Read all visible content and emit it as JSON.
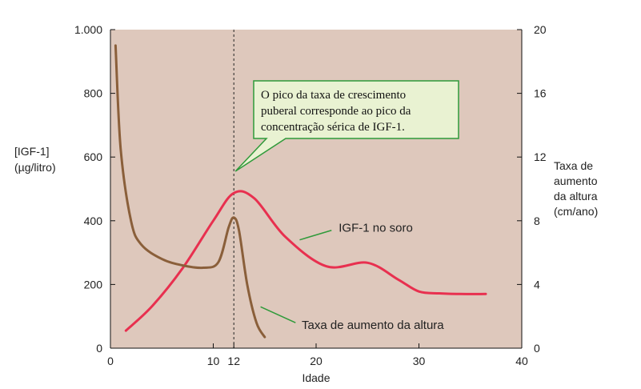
{
  "chart_data": {
    "type": "line",
    "xlabel": "Idade",
    "x_ticks": [
      "0",
      "10",
      "12",
      "20",
      "30",
      "40"
    ],
    "x_tick_values": [
      0,
      10,
      12,
      20,
      30,
      40
    ],
    "xlim": [
      0,
      40
    ],
    "y_left": {
      "label_lines": [
        "[IGF-1]",
        "(µg/litro)"
      ],
      "ticks": [
        "0",
        "200",
        "400",
        "600",
        "800",
        "1.000"
      ],
      "tick_values": [
        0,
        200,
        400,
        600,
        800,
        1000
      ],
      "lim": [
        0,
        1000
      ]
    },
    "y_right": {
      "label_lines": [
        "Taxa de",
        "aumento",
        "da altura",
        "(cm/ano)"
      ],
      "ticks": [
        "0",
        "4",
        "8",
        "12",
        "16",
        "20"
      ],
      "tick_values": [
        0,
        4,
        8,
        12,
        16,
        20
      ],
      "lim": [
        0,
        20
      ]
    },
    "series": [
      {
        "name": "IGF-1 no soro",
        "axis": "left",
        "color": "#e8304f",
        "x": [
          1.5,
          4,
          7,
          10,
          12,
          14,
          17,
          21,
          25,
          28,
          30,
          32,
          34,
          36.5
        ],
        "y": [
          55,
          130,
          250,
          400,
          487,
          470,
          350,
          257,
          268,
          215,
          178,
          172,
          170,
          170
        ]
      },
      {
        "name": "Taxa de aumento da altura",
        "axis": "right",
        "color": "#8a5f3a",
        "x": [
          0.5,
          1.0,
          2.0,
          3.0,
          5.0,
          7.0,
          9.0,
          10.5,
          11.5,
          12.0,
          12.5,
          13.3,
          14.2,
          15.0
        ],
        "y": [
          19.0,
          12.5,
          8.0,
          6.5,
          5.6,
          5.2,
          5.05,
          5.4,
          7.6,
          8.2,
          7.4,
          4.0,
          1.6,
          0.7
        ]
      }
    ],
    "reference_line_x": 12,
    "annotation": {
      "lines": [
        "O pico da taxa de crescimento",
        "puberal corresponde ao pico da",
        "concentração sérica de IGF-1."
      ]
    },
    "background_color": "#dec8bc",
    "callout_color": "#e9f2d2",
    "callout_border": "#2f9a3a",
    "grid": false
  }
}
